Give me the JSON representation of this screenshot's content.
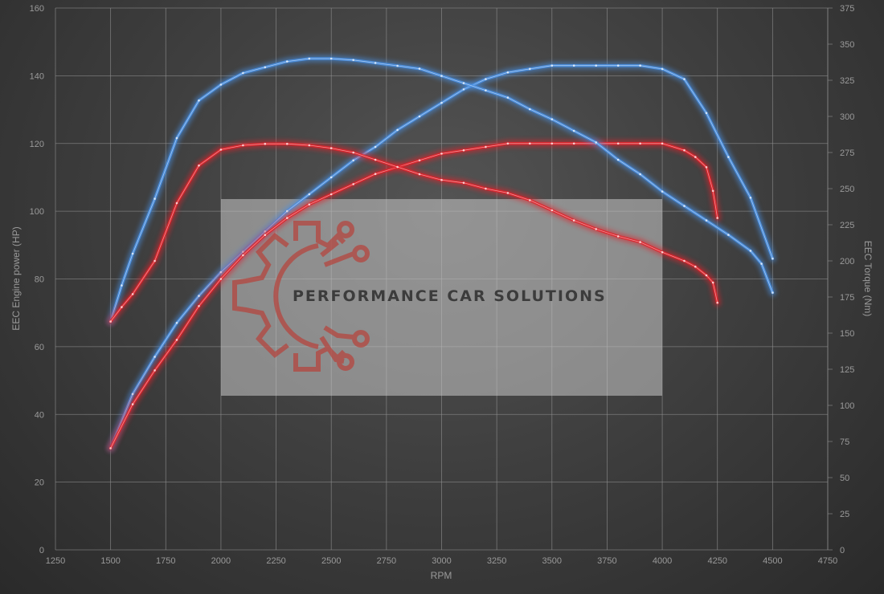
{
  "chart_data": {
    "type": "line",
    "xlabel": "RPM",
    "ylabel_left": "EEC Engine power (HP)",
    "ylabel_right": "EEC Torque (Nm)",
    "xlim": [
      1250,
      4750
    ],
    "ylim_left": [
      0,
      160
    ],
    "ylim_right": [
      0,
      375
    ],
    "x_ticks": [
      1250,
      1500,
      1750,
      2000,
      2250,
      2500,
      2750,
      3000,
      3250,
      3500,
      3750,
      4000,
      4250,
      4500,
      4750
    ],
    "y_left_ticks": [
      0,
      20,
      40,
      60,
      80,
      100,
      120,
      140,
      160
    ],
    "y_right_ticks": [
      0,
      25,
      50,
      75,
      100,
      125,
      150,
      175,
      200,
      225,
      250,
      275,
      300,
      325,
      350,
      375
    ],
    "grid": true,
    "series": [
      {
        "color": "#4a90e2",
        "axis": "left",
        "style": "glow",
        "x": [
          1500,
          1600,
          1700,
          1800,
          1900,
          2000,
          2100,
          2200,
          2300,
          2400,
          2500,
          2600,
          2700,
          2800,
          2900,
          3000,
          3100,
          3200,
          3300,
          3400,
          3500,
          3600,
          3700,
          3800,
          3900,
          4000,
          4100,
          4200,
          4300,
          4400,
          4500
        ],
        "values": [
          30,
          46,
          57,
          67,
          75,
          82,
          88,
          94,
          100,
          105,
          110,
          115,
          119,
          124,
          128,
          132,
          136,
          139,
          141,
          142,
          143,
          143,
          143,
          143,
          143,
          142,
          139,
          129,
          116,
          104,
          86
        ]
      },
      {
        "color": "#e0242b",
        "axis": "left",
        "style": "glow",
        "x": [
          1500,
          1600,
          1700,
          1800,
          1900,
          2000,
          2100,
          2200,
          2300,
          2400,
          2500,
          2600,
          2700,
          2800,
          2900,
          3000,
          3100,
          3200,
          3300,
          3400,
          3500,
          3600,
          3700,
          3800,
          3900,
          4000,
          4100,
          4150,
          4200,
          4230,
          4250
        ],
        "values": [
          30,
          43,
          53,
          62,
          72,
          80,
          87,
          93,
          98,
          102,
          105,
          108,
          111,
          113,
          115,
          117,
          118,
          119,
          120,
          120,
          120,
          120,
          120,
          120,
          120,
          120,
          118,
          116,
          113,
          106,
          98
        ]
      },
      {
        "color": "#4a90e2",
        "axis": "right",
        "style": "glow",
        "x": [
          1500,
          1550,
          1600,
          1700,
          1800,
          1900,
          2000,
          2100,
          2200,
          2300,
          2400,
          2500,
          2600,
          2700,
          2800,
          2900,
          3000,
          3100,
          3200,
          3300,
          3400,
          3500,
          3600,
          3700,
          3800,
          3900,
          4000,
          4100,
          4200,
          4300,
          4400,
          4450,
          4500
        ],
        "values": [
          158,
          183,
          205,
          243,
          285,
          311,
          322,
          330,
          334,
          338,
          340,
          340,
          339,
          337,
          335,
          333,
          328,
          323,
          318,
          313,
          305,
          298,
          290,
          282,
          270,
          260,
          248,
          238,
          228,
          218,
          207,
          198,
          178
        ]
      },
      {
        "color": "#e0242b",
        "axis": "right",
        "style": "glow",
        "x": [
          1500,
          1550,
          1600,
          1700,
          1800,
          1900,
          2000,
          2100,
          2200,
          2300,
          2400,
          2500,
          2600,
          2700,
          2800,
          2900,
          3000,
          3100,
          3200,
          3300,
          3400,
          3500,
          3600,
          3700,
          3800,
          3900,
          4000,
          4100,
          4150,
          4200,
          4230,
          4250
        ],
        "values": [
          158,
          168,
          177,
          200,
          240,
          266,
          277,
          280,
          281,
          281,
          280,
          278,
          275,
          270,
          265,
          260,
          256,
          254,
          250,
          247,
          242,
          235,
          228,
          222,
          217,
          213,
          206,
          200,
          196,
          190,
          185,
          171
        ]
      }
    ]
  },
  "watermark": {
    "text": "PERFORMANCE CAR SOLUTIONS",
    "logo_color": "#b5463f"
  }
}
